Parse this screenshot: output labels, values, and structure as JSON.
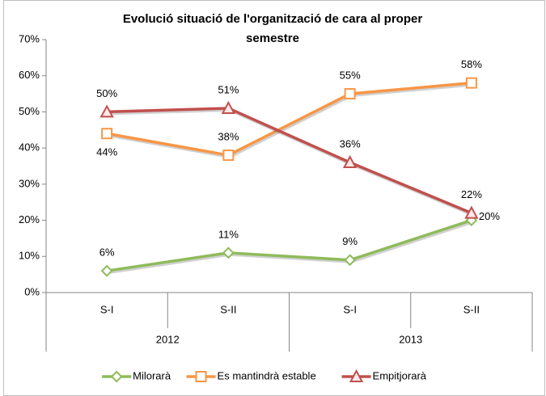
{
  "chart_data": {
    "type": "line",
    "title": [
      "Evolució situació de l'organització de cara al proper",
      "semestre"
    ],
    "categories": [
      "S-I",
      "S-II",
      "S-I",
      "S-II"
    ],
    "category_groups": [
      {
        "name": "2012",
        "size": 2
      },
      {
        "name": "2013",
        "size": 2
      }
    ],
    "series": [
      {
        "name": "Milorarà",
        "color": "#8fbb5a",
        "marker": "diamond",
        "values": [
          6,
          11,
          9,
          20
        ],
        "value_labels": [
          "6%",
          "11%",
          "9%",
          "20%"
        ]
      },
      {
        "name": "Es mantindrà estable",
        "color": "#f79646",
        "marker": "square",
        "values": [
          44,
          38,
          55,
          58
        ],
        "value_labels": [
          "44%",
          "38%",
          "55%",
          "58%"
        ]
      },
      {
        "name": "Empitjorarà",
        "color": "#c0504d",
        "marker": "triangle",
        "values": [
          50,
          51,
          36,
          22
        ],
        "value_labels": [
          "50%",
          "51%",
          "36%",
          "22%"
        ]
      }
    ],
    "ylim": [
      0,
      70
    ],
    "yticks": [
      {
        "value": 0,
        "label": "0%"
      },
      {
        "value": 10,
        "label": "10%"
      },
      {
        "value": 20,
        "label": "20%"
      },
      {
        "value": 30,
        "label": "30%"
      },
      {
        "value": 40,
        "label": "40%"
      },
      {
        "value": 50,
        "label": "50%"
      },
      {
        "value": 60,
        "label": "60%"
      },
      {
        "value": 70,
        "label": "70%"
      }
    ],
    "legend": "bottom"
  }
}
